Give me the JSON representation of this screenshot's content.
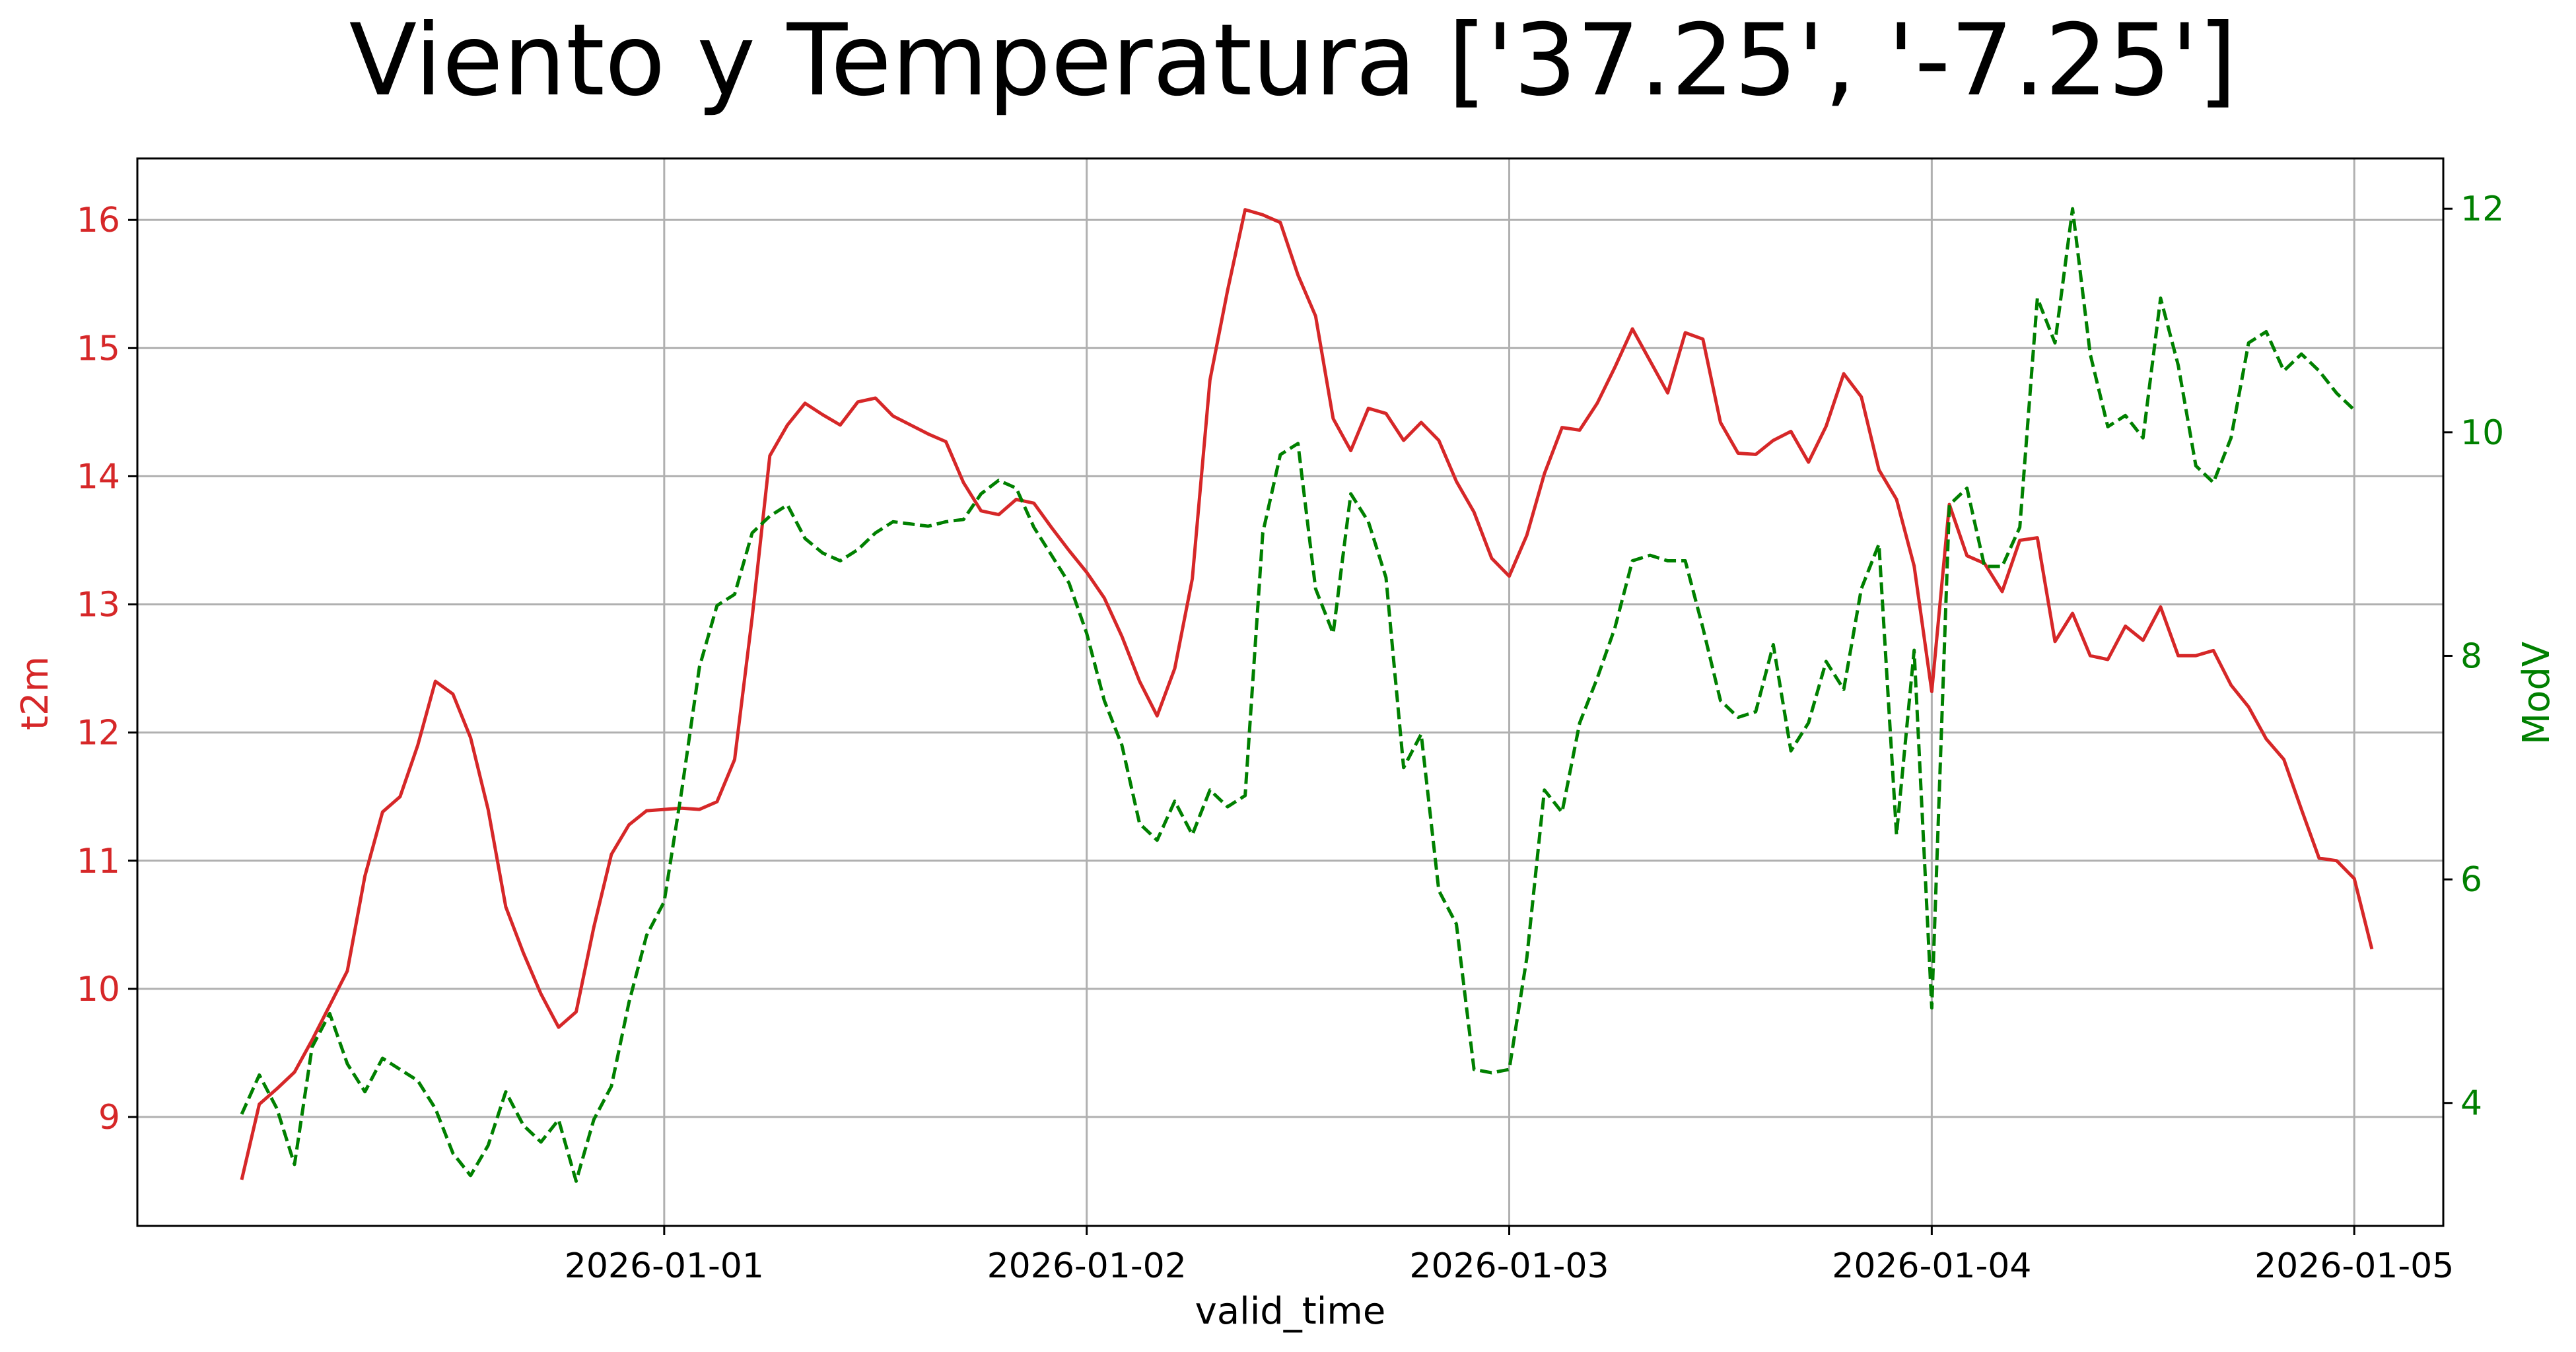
{
  "chart_data": {
    "type": "line",
    "title": "Viento y Temperatura ['37.25', '-7.25']",
    "xlabel": "valid_time",
    "ylabel_left": "t2m",
    "ylabel_right": "ModV",
    "grid": true,
    "x_ticks": [
      "2026-01-01",
      "2026-01-02",
      "2026-01-03",
      "2026-01-04",
      "2026-01-05"
    ],
    "y_left_ticks": [
      9,
      10,
      11,
      12,
      13,
      14,
      15,
      16
    ],
    "y_right_ticks": [
      4,
      6,
      8,
      10,
      12
    ],
    "ylim_left": [
      8.15,
      16.48
    ],
    "ylim_right": [
      2.9,
      12.45
    ],
    "x_start": "2025-12-31T00:00",
    "x_step_hours": 1,
    "colors": {
      "t2m": "#d62728",
      "ModV": "#008000",
      "grid": "#b0b0b0",
      "axes": "#000000"
    },
    "series": [
      {
        "name": "t2m",
        "axis": "left",
        "style": "solid",
        "values": [
          8.51,
          9.1,
          9.22,
          9.35,
          9.6,
          9.87,
          10.14,
          10.88,
          11.38,
          11.5,
          11.9,
          12.4,
          12.3,
          11.96,
          11.4,
          10.64,
          10.28,
          9.96,
          9.7,
          9.82,
          10.48,
          11.05,
          11.28,
          11.39,
          11.4,
          11.41,
          11.4,
          11.46,
          11.79,
          12.9,
          14.16,
          14.4,
          14.57,
          14.48,
          14.4,
          14.58,
          14.61,
          14.47,
          14.4,
          14.33,
          14.27,
          13.95,
          13.73,
          13.7,
          13.82,
          13.79,
          13.6,
          13.42,
          13.25,
          13.05,
          12.75,
          12.4,
          12.13,
          12.5,
          13.2,
          14.75,
          15.45,
          16.08,
          16.04,
          15.98,
          15.57,
          15.25,
          14.45,
          14.2,
          14.53,
          14.49,
          14.28,
          14.42,
          14.28,
          13.96,
          13.72,
          13.36,
          13.22,
          13.54,
          14.02,
          14.38,
          14.36,
          14.57,
          14.85,
          15.15,
          14.9,
          14.65,
          15.12,
          15.07,
          14.42,
          14.18,
          14.17,
          14.28,
          14.35,
          14.11,
          14.39,
          14.8,
          14.62,
          14.05,
          13.82,
          13.3,
          12.32,
          13.78,
          13.38,
          13.32,
          13.1,
          13.5,
          13.52,
          12.71,
          12.93,
          12.6,
          12.57,
          12.83,
          12.72,
          12.98,
          12.6,
          12.6,
          12.64,
          12.37,
          12.2,
          11.95,
          11.79,
          11.4,
          11.02,
          11.0,
          10.86,
          10.31
        ]
      },
      {
        "name": "ModV",
        "axis": "right",
        "style": "dashed",
        "values": [
          3.9,
          4.25,
          3.95,
          3.45,
          4.5,
          4.8,
          4.35,
          4.1,
          4.4,
          4.3,
          4.2,
          3.95,
          3.55,
          3.35,
          3.62,
          4.1,
          3.8,
          3.65,
          3.85,
          3.3,
          3.85,
          4.15,
          4.9,
          5.5,
          5.8,
          6.8,
          7.9,
          8.45,
          8.55,
          9.1,
          9.25,
          9.35,
          9.05,
          8.92,
          8.85,
          8.95,
          9.1,
          9.2,
          9.18,
          9.16,
          9.2,
          9.22,
          9.45,
          9.57,
          9.5,
          9.15,
          8.9,
          8.65,
          8.2,
          7.6,
          7.2,
          6.5,
          6.35,
          6.7,
          6.4,
          6.8,
          6.65,
          6.75,
          9.1,
          9.8,
          9.9,
          8.6,
          8.2,
          9.45,
          9.2,
          8.7,
          7.0,
          7.3,
          5.9,
          5.6,
          4.3,
          4.27,
          4.3,
          5.3,
          6.8,
          6.6,
          7.4,
          7.8,
          8.25,
          8.85,
          8.9,
          8.85,
          8.85,
          8.25,
          7.6,
          7.45,
          7.5,
          8.1,
          7.15,
          7.4,
          7.95,
          7.7,
          8.6,
          9.0,
          6.4,
          8.05,
          4.85,
          9.35,
          9.5,
          8.8,
          8.8,
          9.15,
          11.2,
          10.8,
          12.0,
          10.7,
          10.05,
          10.15,
          9.95,
          11.2,
          10.6,
          9.7,
          9.55,
          9.95,
          10.8,
          10.9,
          10.55,
          10.7,
          10.55,
          10.35,
          10.2
        ]
      }
    ]
  }
}
